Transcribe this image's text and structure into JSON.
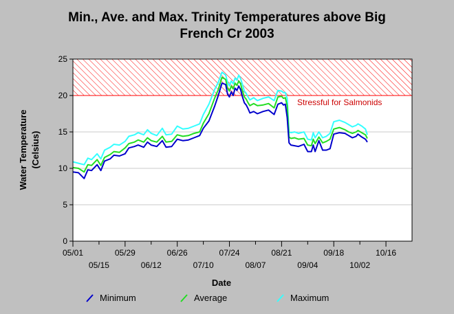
{
  "chart_data": {
    "type": "line",
    "title_line1": "Min., Ave. and Max. Trinity Temperatures above Big",
    "title_line2": "French Cr 2003",
    "xlabel": "Date",
    "ylabel_line1": "Water Temperature",
    "ylabel_line2": "(Celsius)",
    "ylim": [
      0,
      25
    ],
    "yticks": [
      0,
      5,
      10,
      15,
      20,
      25
    ],
    "grid": "horizontal",
    "x_start": "05/01",
    "x_end": "10/30",
    "xticks_top": [
      {
        "day": 0,
        "label": "05/01"
      },
      {
        "day": 28,
        "label": "05/29"
      },
      {
        "day": 56,
        "label": "06/26"
      },
      {
        "day": 84,
        "label": "07/24"
      },
      {
        "day": 112,
        "label": "08/21"
      },
      {
        "day": 140,
        "label": "09/18"
      },
      {
        "day": 168,
        "label": "10/16"
      }
    ],
    "xticks_bottom": [
      {
        "day": 14,
        "label": "05/15"
      },
      {
        "day": 42,
        "label": "06/12"
      },
      {
        "day": 70,
        "label": "07/10"
      },
      {
        "day": 98,
        "label": "08/07"
      },
      {
        "day": 126,
        "label": "09/04"
      },
      {
        "day": 154,
        "label": "10/02"
      }
    ],
    "stress_zone": {
      "from": 20,
      "to": 25,
      "label": "Stressful for Salmonids",
      "color": "#ff0000"
    },
    "days": [
      0,
      3,
      6,
      8,
      10,
      13,
      15,
      17,
      20,
      22,
      25,
      28,
      30,
      33,
      35,
      38,
      40,
      42,
      45,
      48,
      50,
      53,
      56,
      59,
      62,
      65,
      68,
      70,
      73,
      76,
      78,
      80,
      82,
      83,
      84,
      85,
      86,
      87,
      88,
      89,
      90,
      91,
      92,
      93,
      94,
      95,
      97,
      99,
      102,
      105,
      108,
      110,
      112,
      113,
      114,
      115,
      116,
      117,
      119,
      121,
      124,
      126,
      128,
      129,
      130,
      132,
      134,
      136,
      138,
      140,
      143,
      146,
      148,
      150,
      152,
      153,
      155,
      157,
      158
    ],
    "series": [
      {
        "name": "Minimum",
        "color": "#0000cc",
        "values": [
          9.5,
          9.4,
          8.6,
          9.8,
          9.7,
          10.5,
          9.7,
          11.0,
          11.3,
          11.8,
          11.7,
          12.0,
          12.8,
          13.0,
          13.2,
          12.9,
          13.6,
          13.2,
          13.0,
          13.8,
          12.9,
          13.0,
          14.0,
          13.8,
          13.9,
          14.2,
          14.5,
          15.5,
          16.5,
          18.5,
          20.0,
          21.7,
          21.5,
          20.2,
          19.8,
          20.5,
          20.0,
          21.0,
          20.7,
          21.3,
          20.8,
          19.8,
          19.0,
          18.7,
          18.2,
          17.6,
          17.8,
          17.5,
          17.8,
          18.0,
          17.4,
          18.8,
          19.0,
          18.7,
          18.8,
          17.0,
          13.5,
          13.2,
          13.1,
          13.0,
          13.3,
          12.3,
          12.3,
          13.2,
          12.3,
          13.8,
          12.5,
          12.5,
          12.7,
          14.7,
          14.9,
          14.8,
          14.5,
          14.2,
          14.4,
          14.7,
          14.3,
          14.0,
          13.6
        ]
      },
      {
        "name": "Average",
        "color": "#22dd22",
        "values": [
          10.1,
          10.0,
          9.5,
          10.5,
          10.4,
          11.2,
          10.4,
          11.5,
          11.9,
          12.3,
          12.2,
          12.8,
          13.4,
          13.6,
          13.9,
          13.6,
          14.2,
          13.8,
          13.6,
          14.4,
          13.6,
          13.7,
          14.6,
          14.4,
          14.5,
          14.8,
          15.0,
          16.2,
          17.5,
          19.6,
          20.8,
          22.5,
          22.2,
          21.0,
          20.6,
          21.3,
          20.9,
          21.7,
          21.4,
          22.0,
          21.6,
          20.6,
          19.8,
          19.5,
          19.0,
          18.6,
          18.9,
          18.6,
          18.7,
          18.9,
          18.3,
          19.8,
          19.9,
          19.6,
          19.7,
          18.6,
          14.3,
          14.1,
          14.2,
          14.0,
          14.1,
          13.2,
          13.1,
          14.0,
          13.4,
          14.3,
          13.5,
          13.7,
          14.0,
          15.4,
          15.6,
          15.3,
          15.0,
          14.8,
          15.0,
          15.2,
          14.9,
          14.6,
          14.1
        ]
      },
      {
        "name": "Maximum",
        "color": "#33ffff",
        "values": [
          10.9,
          10.7,
          10.5,
          11.4,
          11.2,
          12.0,
          11.3,
          12.5,
          12.9,
          13.3,
          13.2,
          13.7,
          14.4,
          14.6,
          14.9,
          14.6,
          15.3,
          14.8,
          14.5,
          15.5,
          14.6,
          14.7,
          15.8,
          15.4,
          15.5,
          15.8,
          16.1,
          17.4,
          18.8,
          20.8,
          21.8,
          23.2,
          22.8,
          21.8,
          21.3,
          22.0,
          21.6,
          22.4,
          22.1,
          22.8,
          22.3,
          21.5,
          20.6,
          20.3,
          19.8,
          19.4,
          19.7,
          19.3,
          19.6,
          19.8,
          19.3,
          20.7,
          20.6,
          20.4,
          20.4,
          19.6,
          15.0,
          14.9,
          15.0,
          14.8,
          15.0,
          14.0,
          13.9,
          14.9,
          14.2,
          15.0,
          14.2,
          14.4,
          14.8,
          16.4,
          16.6,
          16.3,
          16.0,
          15.7,
          15.9,
          16.1,
          15.8,
          15.4,
          14.6
        ]
      }
    ]
  }
}
